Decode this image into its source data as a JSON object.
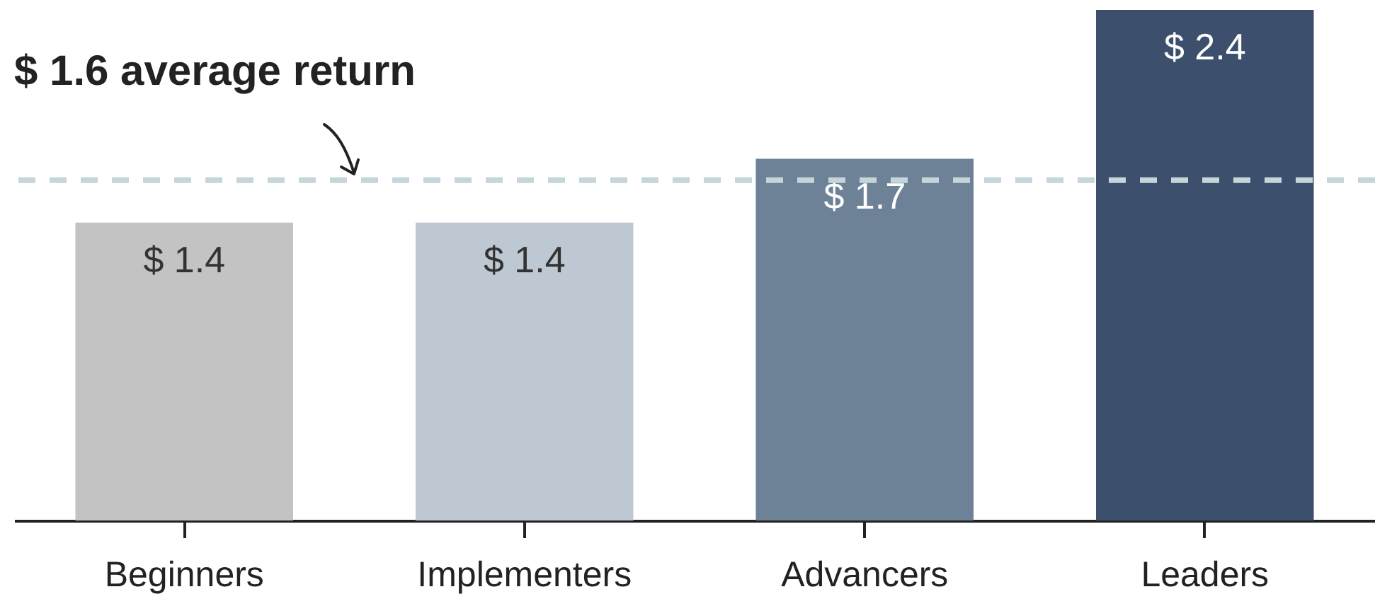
{
  "chart_data": {
    "type": "bar",
    "categories": [
      "Beginners",
      "Implementers",
      "Advancers",
      "Leaders"
    ],
    "values": [
      1.4,
      1.4,
      1.7,
      2.4
    ],
    "colors": [
      "#c3c3c3",
      "#bdc8d3",
      "#6d8297",
      "#3c506d"
    ],
    "value_labels": [
      "$ 1.4",
      "$ 1.4",
      "$ 1.7",
      "$ 2.4"
    ],
    "ylim": [
      0,
      2.4
    ],
    "ref_lines": [
      {
        "axis": "y",
        "value": 1.6,
        "label": "$ 1.6 average return",
        "color": "#c5d5da",
        "line_style": "dashed"
      }
    ]
  }
}
